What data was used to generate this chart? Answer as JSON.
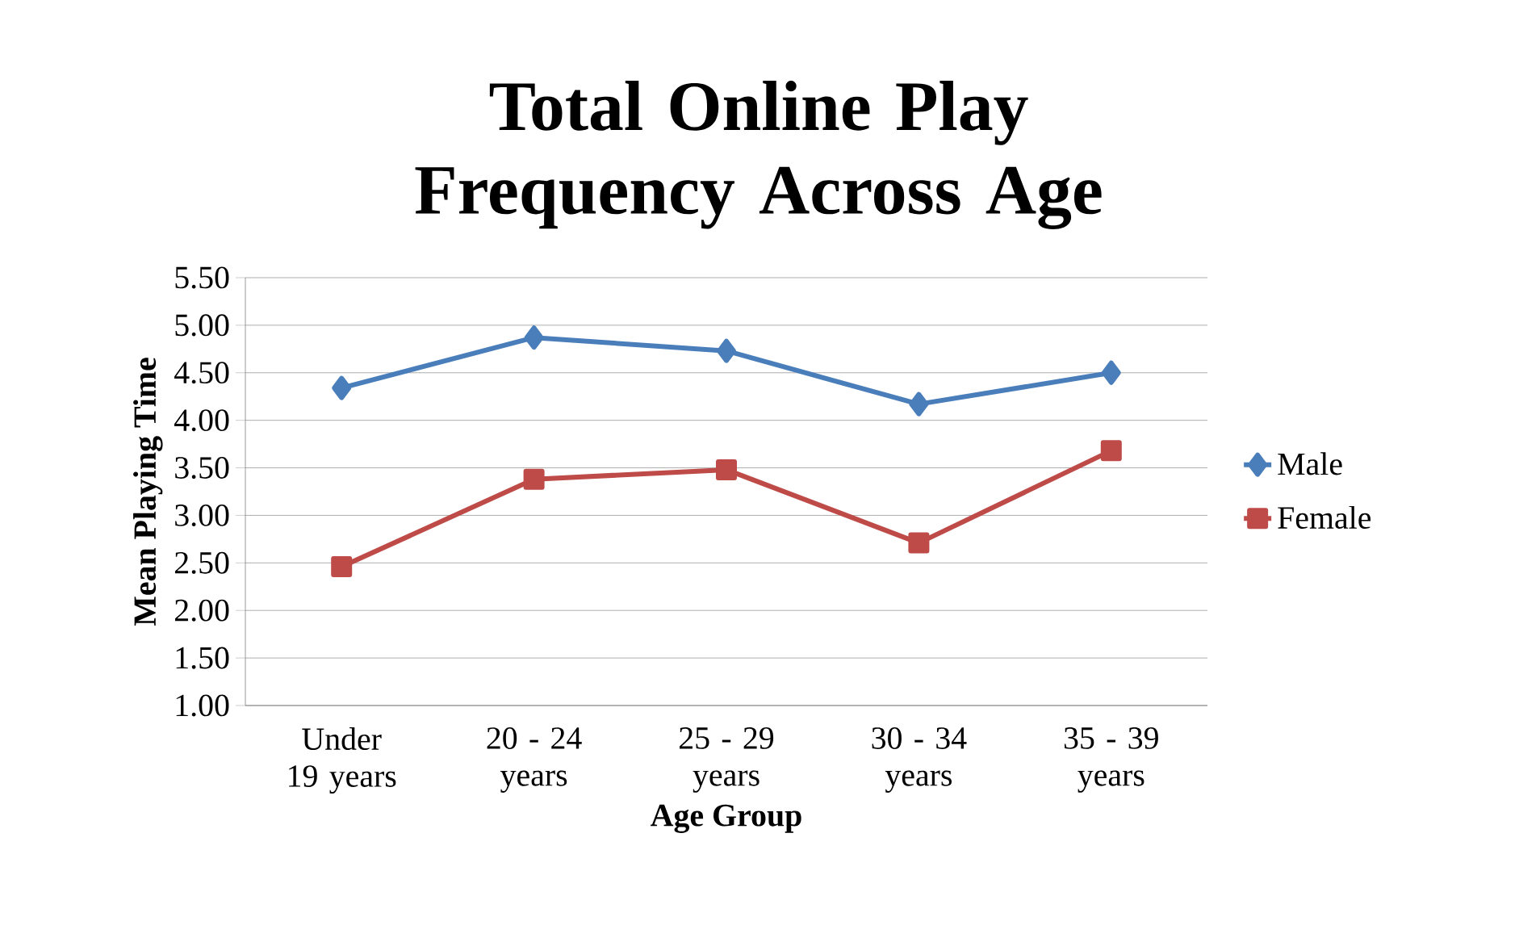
{
  "chart_data": {
    "type": "line",
    "title": "Total Online Play Frequency Across Age",
    "xlabel": "Age Group",
    "ylabel": "Mean Playing Time",
    "categories": [
      "Under 19 years",
      "20 - 24 years",
      "25 - 29 years",
      "30 - 34 years",
      "35 - 39 years"
    ],
    "series": [
      {
        "name": "Male",
        "color": "#4a7ebb",
        "marker": "diamond",
        "values": [
          4.34,
          4.87,
          4.73,
          4.17,
          4.5
        ]
      },
      {
        "name": "Female",
        "color": "#be4b48",
        "marker": "square",
        "values": [
          2.46,
          3.38,
          3.48,
          2.71,
          3.68
        ]
      }
    ],
    "ylim": [
      1.0,
      5.5
    ],
    "yticks": [
      {
        "value": 1.0,
        "label": "1.00"
      },
      {
        "value": 1.5,
        "label": "1.50"
      },
      {
        "value": 2.0,
        "label": "2.00"
      },
      {
        "value": 2.5,
        "label": "2.50"
      },
      {
        "value": 3.0,
        "label": "3.00"
      },
      {
        "value": 3.5,
        "label": "3.50"
      },
      {
        "value": 4.0,
        "label": "4.00"
      },
      {
        "value": 4.5,
        "label": "4.50"
      },
      {
        "value": 5.0,
        "label": "5.00"
      },
      {
        "value": 5.5,
        "label": "5.50"
      }
    ],
    "grid": "y",
    "legend": "right",
    "line_style": "solid"
  }
}
